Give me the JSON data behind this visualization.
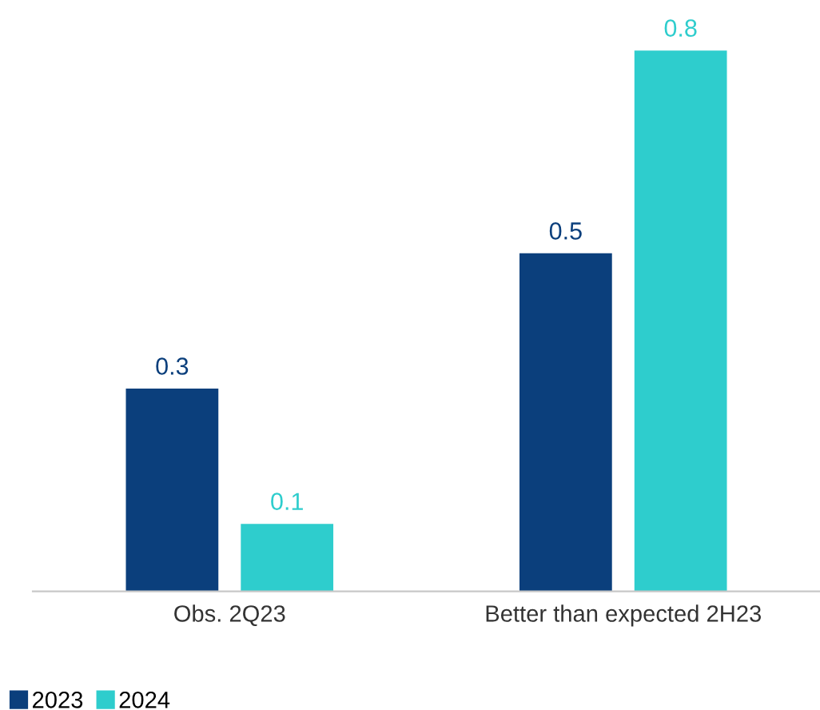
{
  "chart_data": {
    "type": "bar",
    "categories": [
      "Obs. 2Q23",
      "Better than expected 2H23"
    ],
    "series": [
      {
        "name": "2023",
        "color": "#0b3f7c",
        "values": [
          0.3,
          0.5
        ]
      },
      {
        "name": "2024",
        "color": "#2ecdcd",
        "values": [
          0.1,
          0.8
        ]
      }
    ],
    "tick_labels": "x",
    "data_labels": true,
    "legend": "bottom left",
    "grid": false
  }
}
